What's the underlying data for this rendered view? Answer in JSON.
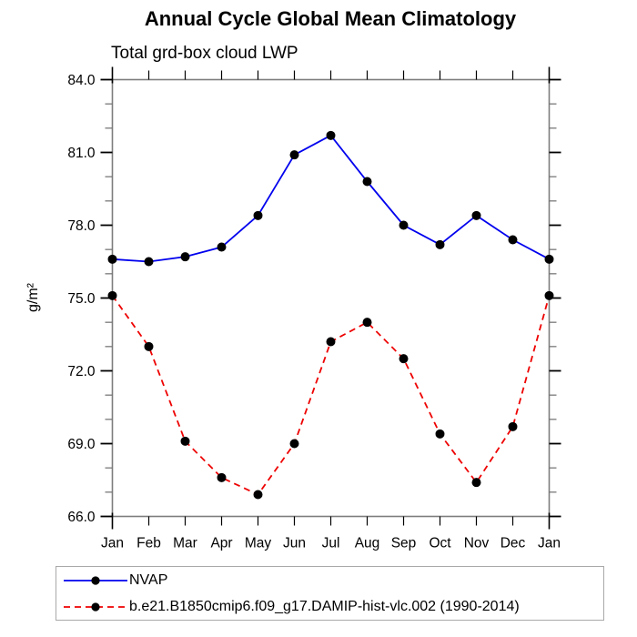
{
  "chart_data": {
    "type": "line",
    "title": "Annual Cycle Global Mean Climatology",
    "subtitle": "Total grd-box cloud LWP",
    "ylabel": "g/m²",
    "xlabel": "",
    "categories": [
      "Jan",
      "Feb",
      "Mar",
      "Apr",
      "May",
      "Jun",
      "Jul",
      "Aug",
      "Sep",
      "Oct",
      "Nov",
      "Dec",
      "Jan"
    ],
    "ylim": [
      66.0,
      84.0
    ],
    "ytick_major_values": [
      66,
      69,
      72,
      75,
      78,
      81,
      84
    ],
    "ytick_major_labels": [
      "66.0",
      "69.0",
      "72.0",
      "75.0",
      "78.0",
      "81.0",
      "84.0"
    ],
    "ytick_minor_step": 1.0,
    "grid": false,
    "legend_position": "bottom",
    "marker": "filled-circle",
    "marker_color": "#000000",
    "series": [
      {
        "name": "NVAP",
        "color": "#0000ee",
        "line_style": "solid",
        "values": [
          76.6,
          76.5,
          76.7,
          77.1,
          78.4,
          80.9,
          81.7,
          79.8,
          78.0,
          77.2,
          78.4,
          77.4,
          76.6
        ]
      },
      {
        "name": "b.e21.B1850cmip6.f09_g17.DAMIP-hist-vlc.002 (1990-2014)",
        "color": "#ee0000",
        "line_style": "dashed",
        "values": [
          75.1,
          73.0,
          69.1,
          67.6,
          66.9,
          69.0,
          73.2,
          74.0,
          72.5,
          69.4,
          67.4,
          69.7,
          75.1
        ]
      }
    ]
  }
}
